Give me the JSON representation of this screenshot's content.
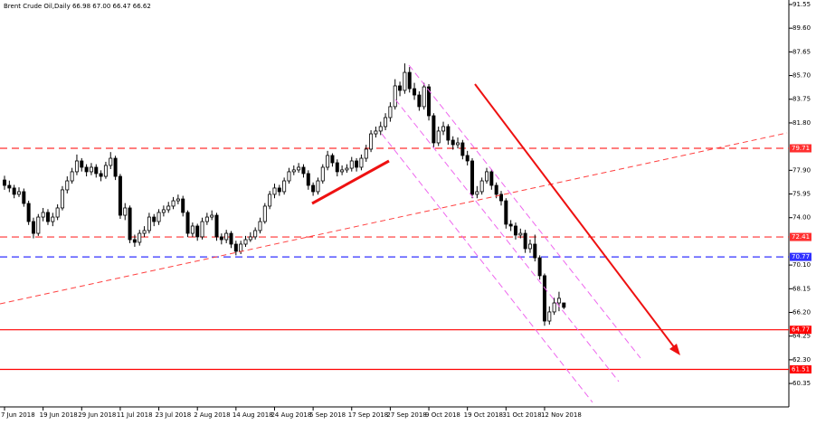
{
  "chart_data": {
    "type": "candlestick",
    "title": "Brent Crude Oil,Daily  66.98 67.00 66.47 66.62",
    "categories": [
      "7 Jun 2018",
      null,
      null,
      null,
      null,
      null,
      null,
      null,
      "19 Jun 2018",
      null,
      null,
      null,
      null,
      null,
      null,
      null,
      "29 Jun 2018",
      null,
      null,
      null,
      null,
      null,
      null,
      null,
      "11 Jul 2018",
      null,
      null,
      null,
      null,
      null,
      null,
      null,
      "23 Jul 2018",
      null,
      null,
      null,
      null,
      null,
      null,
      null,
      "2 Aug 2018",
      null,
      null,
      null,
      null,
      null,
      null,
      null,
      "14 Aug 2018",
      null,
      null,
      null,
      null,
      null,
      null,
      null,
      "24 Aug 2018",
      null,
      null,
      null,
      null,
      null,
      null,
      null,
      "5 Sep 2018",
      null,
      null,
      null,
      null,
      null,
      null,
      null,
      "17 Sep 2018",
      null,
      null,
      null,
      null,
      null,
      null,
      null,
      "27 Sep 2018",
      null,
      null,
      null,
      null,
      null,
      null,
      null,
      "9 Oct 2018",
      null,
      null,
      null,
      null,
      null,
      null,
      null,
      "19 Oct 2018",
      null,
      null,
      null,
      null,
      null,
      null,
      null,
      "31 Oct 2018",
      null,
      null,
      null,
      null,
      null,
      null,
      null,
      "12 Nov 2018",
      null,
      null,
      null,
      null
    ],
    "open": [
      77.1,
      76.66,
      76.44,
      75.92,
      76.14,
      75.17,
      73.68,
      72.71,
      74.05,
      74.43,
      73.68,
      74.05,
      74.8,
      76.29,
      77.03,
      77.78,
      78.67,
      78.15,
      77.78,
      78.15,
      77.63,
      77.4,
      78.3,
      78.89,
      77.4,
      74.2,
      74.8,
      72.19,
      71.97,
      72.71,
      72.94,
      74.05,
      73.68,
      74.43,
      74.65,
      74.95,
      75.39,
      75.54,
      74.43,
      72.71,
      73.31,
      72.42,
      73.68,
      74.05,
      74.2,
      72.42,
      72.19,
      72.71,
      71.82,
      71.23,
      71.82,
      72.19,
      72.42,
      72.94,
      73.68,
      74.95,
      75.92,
      76.44,
      76.14,
      77.03,
      77.78,
      77.93,
      78.15,
      77.63,
      76.66,
      76.14,
      77.03,
      78.15,
      79.12,
      78.52,
      77.78,
      77.93,
      78.07,
      78.67,
      78.15,
      78.89,
      79.64,
      80.9,
      81.13,
      81.5,
      82.24,
      83.14,
      84.85,
      84.48,
      85.96,
      84.62,
      84.1,
      83.14,
      84.77,
      82.39,
      80.16,
      81.13,
      81.5,
      80.38,
      80.01,
      80.16,
      79.12,
      78.67,
      75.92,
      76.14,
      77.03,
      77.78,
      76.66,
      75.92,
      75.39,
      73.46,
      73.31,
      72.57,
      72.71,
      71.45,
      71.82,
      70.7,
      69.22,
      65.49,
      66.24,
      66.98,
      66.98
    ],
    "high": [
      77.45,
      77.05,
      76.7,
      76.5,
      76.4,
      75.4,
      74.0,
      74.3,
      74.8,
      74.7,
      74.4,
      75.1,
      76.6,
      77.4,
      78.1,
      79.2,
      78.9,
      78.4,
      78.5,
      78.4,
      77.9,
      78.6,
      79.4,
      79.1,
      77.6,
      75.2,
      75.0,
      72.6,
      73.0,
      73.3,
      74.4,
      74.3,
      74.7,
      75.0,
      75.3,
      75.7,
      75.9,
      75.8,
      74.6,
      73.6,
      73.5,
      74.0,
      74.4,
      74.6,
      74.4,
      72.7,
      73.0,
      72.9,
      72.1,
      72.1,
      72.5,
      72.8,
      73.2,
      74.0,
      75.2,
      76.2,
      76.8,
      76.7,
      77.3,
      78.1,
      78.3,
      78.5,
      78.4,
      77.9,
      76.9,
      77.3,
      78.4,
      79.5,
      79.3,
      78.8,
      78.3,
      78.4,
      79.0,
      78.9,
      79.2,
      80.0,
      81.2,
      81.5,
      81.9,
      82.6,
      83.5,
      85.4,
      85.2,
      86.7,
      86.4,
      85.1,
      84.4,
      85.1,
      85.0,
      82.6,
      81.5,
      81.9,
      81.7,
      80.7,
      80.6,
      80.4,
      79.5,
      78.9,
      76.6,
      77.3,
      78.1,
      78.0,
      76.9,
      76.2,
      75.6,
      73.8,
      73.6,
      73.1,
      73.0,
      72.2,
      72.6,
      70.9,
      69.4,
      66.7,
      67.4,
      67.9,
      67.0
    ],
    "low": [
      76.3,
      76.1,
      75.6,
      75.7,
      74.9,
      73.4,
      72.3,
      72.5,
      73.7,
      73.4,
      73.3,
      73.8,
      74.6,
      76.0,
      76.8,
      77.5,
      77.8,
      77.4,
      77.5,
      77.3,
      77.0,
      77.2,
      78.0,
      77.1,
      73.9,
      73.8,
      71.9,
      71.6,
      71.7,
      72.4,
      72.7,
      73.3,
      73.4,
      74.1,
      74.4,
      74.7,
      75.1,
      74.1,
      72.4,
      72.4,
      72.1,
      72.2,
      73.4,
      73.8,
      72.1,
      71.8,
      71.9,
      71.5,
      70.9,
      71.0,
      71.6,
      72.0,
      72.2,
      72.7,
      73.5,
      74.7,
      75.6,
      75.8,
      75.9,
      76.8,
      77.5,
      77.7,
      77.3,
      76.3,
      75.8,
      75.9,
      76.8,
      77.9,
      78.2,
      77.4,
      77.5,
      77.7,
      77.8,
      77.8,
      77.9,
      78.6,
      79.4,
      80.6,
      80.8,
      81.2,
      81.9,
      82.9,
      84.0,
      84.2,
      84.3,
      83.7,
      82.8,
      82.9,
      82.0,
      79.8,
      79.9,
      80.8,
      80.0,
      79.6,
      79.7,
      78.8,
      78.3,
      75.6,
      75.6,
      75.9,
      76.8,
      76.3,
      75.6,
      75.0,
      73.1,
      72.9,
      72.2,
      72.3,
      71.1,
      71.1,
      70.4,
      68.9,
      65.1,
      65.2,
      66.0,
      66.3,
      66.47
    ],
    "close": [
      76.66,
      76.44,
      75.92,
      76.14,
      75.17,
      73.68,
      72.71,
      74.05,
      74.43,
      73.68,
      74.05,
      74.8,
      76.29,
      77.03,
      77.78,
      78.67,
      78.15,
      77.78,
      78.15,
      77.63,
      77.4,
      78.3,
      78.89,
      77.4,
      74.2,
      74.8,
      72.19,
      71.97,
      72.71,
      72.94,
      74.05,
      73.68,
      74.43,
      74.65,
      74.95,
      75.39,
      75.54,
      74.43,
      72.71,
      73.31,
      72.42,
      73.68,
      74.05,
      74.2,
      72.42,
      72.19,
      72.71,
      71.82,
      71.23,
      71.82,
      72.19,
      72.42,
      72.94,
      73.68,
      74.95,
      75.92,
      76.44,
      76.14,
      77.03,
      77.78,
      77.93,
      78.15,
      77.63,
      76.66,
      76.14,
      77.03,
      78.15,
      79.12,
      78.52,
      77.78,
      77.93,
      78.07,
      78.67,
      78.15,
      78.89,
      79.64,
      80.9,
      81.13,
      81.5,
      82.24,
      83.14,
      84.85,
      84.48,
      85.96,
      84.62,
      84.1,
      83.14,
      84.77,
      82.39,
      80.16,
      81.13,
      81.5,
      80.38,
      80.01,
      80.16,
      79.12,
      78.67,
      75.92,
      76.14,
      77.03,
      77.78,
      76.66,
      75.92,
      75.39,
      73.46,
      73.31,
      72.57,
      72.71,
      71.45,
      71.82,
      70.7,
      69.22,
      65.49,
      66.24,
      66.98,
      67.36,
      66.62
    ],
    "up_color": "#ffffff",
    "down_color": "#000000",
    "wick_color": "#000000",
    "ylim": [
      58.42,
      91.92
    ],
    "yticks": [
      91.55,
      {
        "value": 89.6,
        "label": "89.60"
      },
      87.65,
      {
        "value": 85.7,
        "label": "85.70"
      },
      83.75,
      {
        "value": 81.8,
        "label": "81.80"
      },
      {
        "value": 77.9,
        "label": "77.90"
      },
      75.95,
      {
        "value": 74,
        "label": "74.00"
      },
      {
        "value": 70.1,
        "label": "70.10"
      },
      68.15,
      {
        "value": 66.2,
        "label": "66.20"
      },
      64.25,
      {
        "value": 62.3,
        "label": "62.30"
      },
      60.35
    ],
    "grid": false,
    "levels": [
      {
        "value": 79.71,
        "color": "#ff3030",
        "style": "dashed"
      },
      {
        "value": 72.41,
        "color": "#ff3030",
        "style": "dashed"
      },
      {
        "value": 70.77,
        "color": "#3030ff",
        "style": "dashed"
      },
      {
        "value": 64.77,
        "color": "#ff0000",
        "style": "solid"
      },
      {
        "value": 61.51,
        "color": "#ff0000",
        "style": "solid"
      }
    ]
  }
}
